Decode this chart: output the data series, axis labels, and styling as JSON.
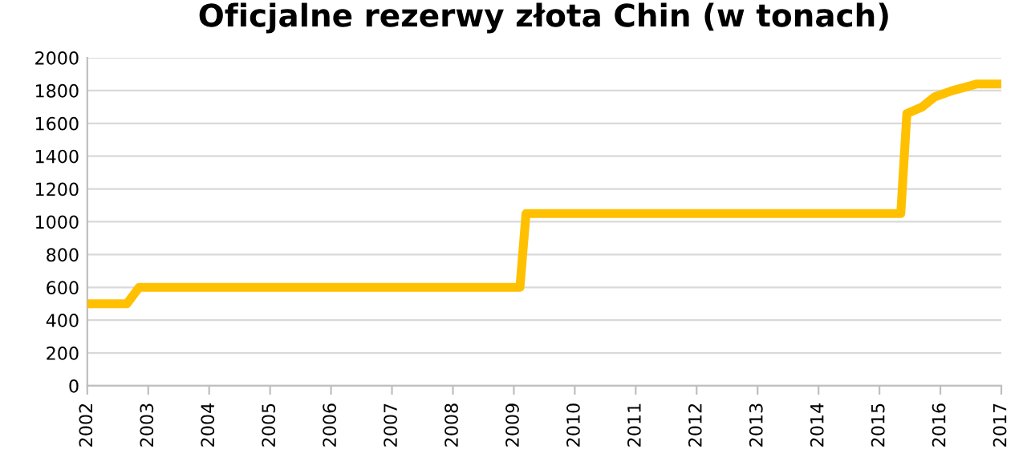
{
  "chart_data": {
    "type": "line",
    "title": "Oficjalne rezerwy złota Chin (w tonach)",
    "x": [
      2002.0,
      2002.65,
      2002.85,
      2009.1,
      2009.2,
      2015.35,
      2015.45,
      2015.7,
      2015.9,
      2016.2,
      2016.4,
      2016.6,
      2017.0
    ],
    "series": [
      {
        "color": "#ffc000",
        "values": [
          500,
          500,
          600,
          600,
          1050,
          1050,
          1660,
          1700,
          1760,
          1800,
          1820,
          1840,
          1840
        ]
      }
    ],
    "xlim": [
      2002,
      2017
    ],
    "xticks": [
      2002,
      2003,
      2004,
      2005,
      2006,
      2007,
      2008,
      2009,
      2010,
      2011,
      2012,
      2013,
      2014,
      2015,
      2016,
      2017
    ],
    "ylim": [
      0,
      2000
    ],
    "yticks": [
      0,
      200,
      400,
      600,
      800,
      1000,
      1200,
      1400,
      1600,
      1800,
      2000
    ],
    "grid": "y",
    "legend": false,
    "marker": "none",
    "line_style": "solid"
  }
}
